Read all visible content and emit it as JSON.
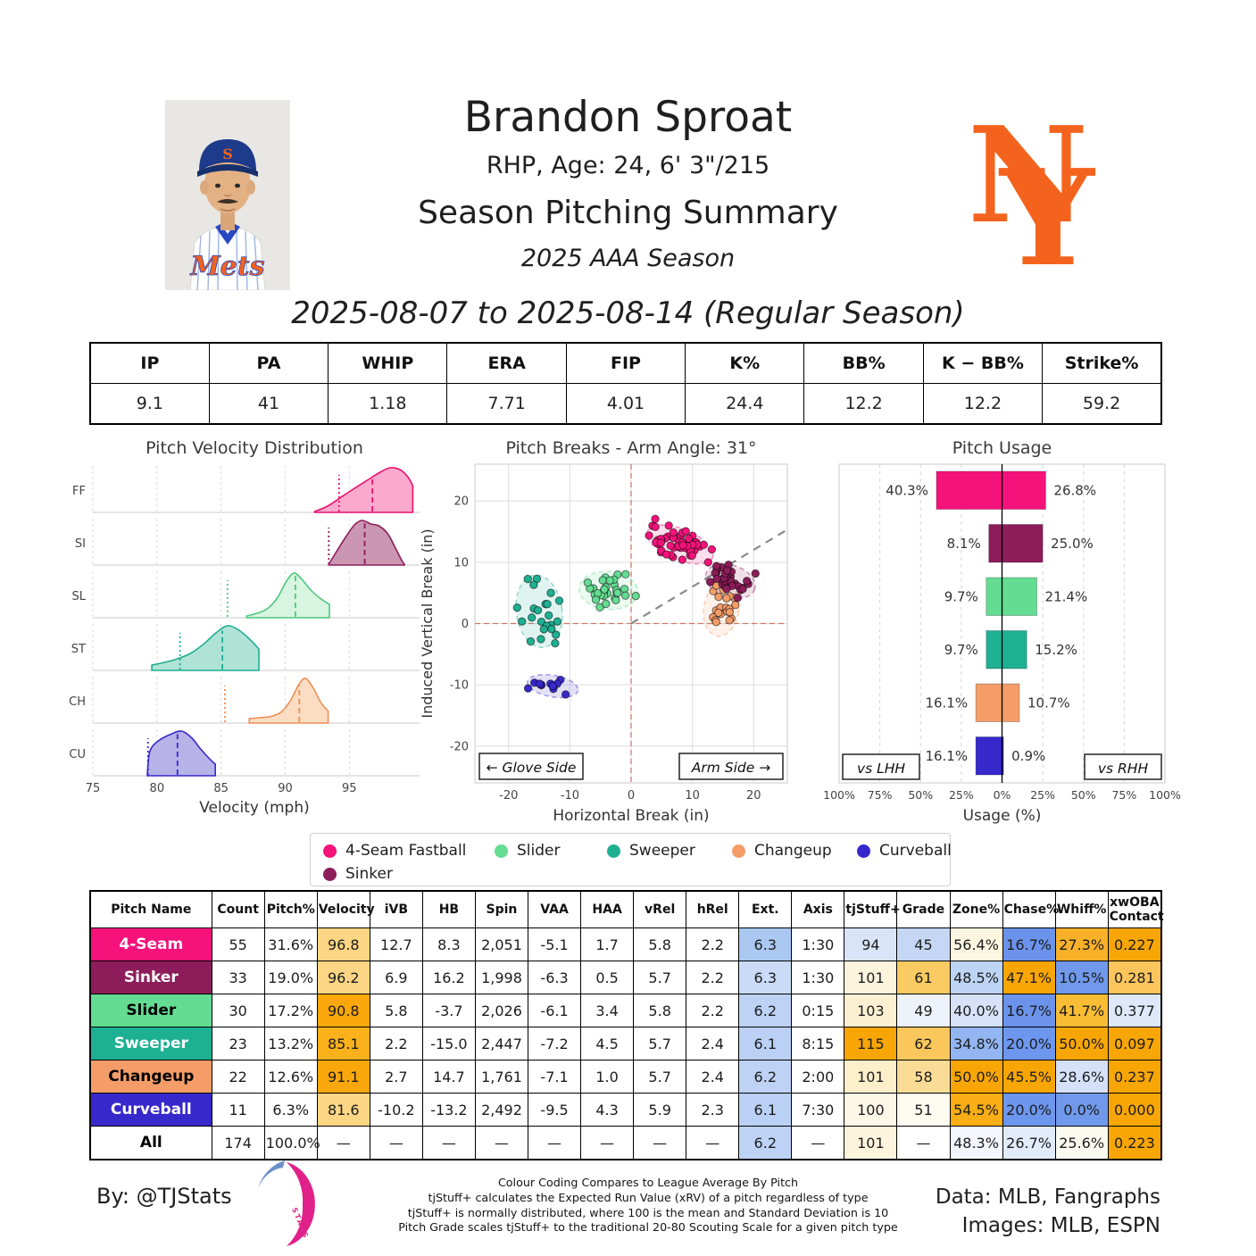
{
  "header": {
    "name": "Brandon Sproat",
    "bio": "RHP, Age: 24, 6' 3\"/215",
    "summary_title": "Season Pitching Summary",
    "season": "2025 AAA Season",
    "date_range": "2025-08-07 to 2025-08-14 (Regular Season)",
    "team": "New York Mets",
    "team_logo_color": "#F4631E",
    "jersey_text": "Mets"
  },
  "summary_table": {
    "columns": [
      "IP",
      "PA",
      "WHIP",
      "ERA",
      "FIP",
      "K%",
      "BB%",
      "K − BB%",
      "Strike%"
    ],
    "values": [
      "9.1",
      "41",
      "1.18",
      "7.71",
      "4.01",
      "24.4",
      "12.2",
      "12.2",
      "59.2"
    ]
  },
  "pitches": [
    {
      "abbr": "FF",
      "name": "4-Seam Fastball",
      "short": "4-Seam",
      "color": "#F5127B",
      "stroke": "#E8116F",
      "fill": "#FBA9CD",
      "label_text": "#FFFFFF"
    },
    {
      "abbr": "SI",
      "name": "Sinker",
      "short": "Sinker",
      "color": "#8D1D5A",
      "stroke": "#8D1D5A",
      "fill": "#CB96B1",
      "label_text": "#FFFFFF"
    },
    {
      "abbr": "SL",
      "name": "Slider",
      "short": "Slider",
      "color": "#64DC92",
      "stroke": "#4EC77F",
      "fill": "#D7F5E0",
      "label_text": "#000000"
    },
    {
      "abbr": "ST",
      "name": "Sweeper",
      "short": "Sweeper",
      "color": "#1EB092",
      "stroke": "#1EAE91",
      "fill": "#AFE3D6",
      "label_text": "#FFFFFF"
    },
    {
      "abbr": "CH",
      "name": "Changeup",
      "short": "Changeup",
      "color": "#F49D69",
      "stroke": "#EE8E57",
      "fill": "#FBDDC3",
      "label_text": "#000000"
    },
    {
      "abbr": "CU",
      "name": "Curveball",
      "short": "Curveball",
      "color": "#3728CC",
      "stroke": "#3728CC",
      "fill": "#B7B3E9",
      "label_text": "#FFFFFF"
    }
  ],
  "legend": {
    "rows": [
      [
        "4-Seam Fastball",
        "Slider",
        "Sweeper",
        "Changeup",
        "Curveball"
      ],
      [
        "Sinker"
      ]
    ],
    "item_offsets": [
      [
        14,
        206,
        332,
        472,
        612
      ],
      [
        14
      ]
    ]
  },
  "chart_data": [
    {
      "type": "area",
      "title": "Pitch Velocity Distribution",
      "xlabel": "Velocity (mph)",
      "xlim": [
        75,
        100.2
      ],
      "xticks": [
        75,
        80,
        85,
        90,
        95
      ],
      "legend_position": "none",
      "grid": "dashed-vertical",
      "rows": [
        {
          "abbr": "FF",
          "pitch": "4-Seam Fastball",
          "mean_mph": 96.8,
          "league_avg_mph": 94.2,
          "shape": [
            [
              92.3,
              0.02
            ],
            [
              93.3,
              0.14
            ],
            [
              94.3,
              0.33
            ],
            [
              95.3,
              0.52
            ],
            [
              96.4,
              0.72
            ],
            [
              97.4,
              0.9
            ],
            [
              98.2,
              1.0
            ],
            [
              99.0,
              0.95
            ],
            [
              99.6,
              0.78
            ],
            [
              99.95,
              0.6
            ]
          ]
        },
        {
          "abbr": "SI",
          "pitch": "Sinker",
          "mean_mph": 96.2,
          "league_avg_mph": 93.4,
          "shape": [
            [
              93.4,
              0.02
            ],
            [
              94.0,
              0.3
            ],
            [
              94.7,
              0.62
            ],
            [
              95.4,
              0.9
            ],
            [
              96.0,
              1.0
            ],
            [
              96.7,
              0.92
            ],
            [
              97.3,
              0.88
            ],
            [
              98.0,
              0.7
            ],
            [
              98.6,
              0.38
            ],
            [
              99.1,
              0.1
            ],
            [
              99.3,
              0.02
            ]
          ]
        },
        {
          "abbr": "SL",
          "pitch": "Slider",
          "mean_mph": 90.8,
          "league_avg_mph": 85.5,
          "shape": [
            [
              87.0,
              0.04
            ],
            [
              87.8,
              0.1
            ],
            [
              88.6,
              0.2
            ],
            [
              89.4,
              0.45
            ],
            [
              90.1,
              0.82
            ],
            [
              90.7,
              1.0
            ],
            [
              91.3,
              0.86
            ],
            [
              92.0,
              0.62
            ],
            [
              92.8,
              0.42
            ],
            [
              93.45,
              0.3
            ]
          ]
        },
        {
          "abbr": "ST",
          "pitch": "Sweeper",
          "mean_mph": 85.1,
          "league_avg_mph": 81.8,
          "shape": [
            [
              79.6,
              0.12
            ],
            [
              80.6,
              0.18
            ],
            [
              81.6,
              0.26
            ],
            [
              82.6,
              0.38
            ],
            [
              83.6,
              0.58
            ],
            [
              84.6,
              0.84
            ],
            [
              85.5,
              1.0
            ],
            [
              86.4,
              0.9
            ],
            [
              87.3,
              0.68
            ],
            [
              87.95,
              0.48
            ]
          ]
        },
        {
          "abbr": "CH",
          "pitch": "Changeup",
          "mean_mph": 91.1,
          "league_avg_mph": 85.3,
          "shape": [
            [
              87.2,
              0.1
            ],
            [
              88.0,
              0.12
            ],
            [
              88.9,
              0.15
            ],
            [
              89.7,
              0.25
            ],
            [
              90.4,
              0.5
            ],
            [
              91.1,
              0.88
            ],
            [
              91.6,
              1.0
            ],
            [
              92.2,
              0.78
            ],
            [
              92.8,
              0.45
            ],
            [
              93.35,
              0.27
            ]
          ]
        },
        {
          "abbr": "CU",
          "pitch": "Curveball",
          "mean_mph": 81.6,
          "league_avg_mph": 79.3,
          "shape": [
            [
              79.25,
              0.05
            ],
            [
              79.45,
              0.55
            ],
            [
              80.1,
              0.78
            ],
            [
              81.0,
              0.92
            ],
            [
              81.9,
              1.0
            ],
            [
              82.7,
              0.85
            ],
            [
              83.4,
              0.6
            ],
            [
              84.1,
              0.38
            ],
            [
              84.55,
              0.26
            ]
          ]
        }
      ]
    },
    {
      "type": "scatter",
      "title": "Pitch Breaks - Arm Angle: 31°",
      "xlabel": "Horizontal Break (in)",
      "ylabel": "Induced Vertical Break (in)",
      "xlim": [
        -25.5,
        25.5
      ],
      "ylim": [
        -26,
        26
      ],
      "xticks": [
        -20,
        -10,
        0,
        10,
        20
      ],
      "yticks": [
        -20,
        -10,
        0,
        10,
        20
      ],
      "arm_angle_deg": 31,
      "glove_side_label": "← Glove Side",
      "arm_side_label": "Arm Side →",
      "ellipse_sd_scale": 2.2,
      "clusters": [
        {
          "pitch": "4-Seam Fastball",
          "n": 55,
          "center": [
            8.0,
            12.9
          ],
          "sd": [
            2.6,
            1.15
          ],
          "rot_deg": -22,
          "seed": 11
        },
        {
          "pitch": "Sinker",
          "n": 33,
          "center": [
            16.2,
            6.9
          ],
          "sd": [
            1.9,
            1.2
          ],
          "rot_deg": -18,
          "seed": 22
        },
        {
          "pitch": "Slider",
          "n": 30,
          "center": [
            -3.7,
            5.4
          ],
          "sd": [
            2.2,
            1.4
          ],
          "rot_deg": -5,
          "seed": 33
        },
        {
          "pitch": "Sweeper",
          "n": 23,
          "center": [
            -15.0,
            2.0
          ],
          "sd": [
            1.7,
            2.7
          ],
          "rot_deg": 8,
          "seed": 44
        },
        {
          "pitch": "Changeup",
          "n": 22,
          "center": [
            14.7,
            2.3
          ],
          "sd": [
            1.3,
            2.0
          ],
          "rot_deg": -8,
          "seed": 55
        },
        {
          "pitch": "Curveball",
          "n": 11,
          "center": [
            -12.8,
            -10.2
          ],
          "sd": [
            1.9,
            0.8
          ],
          "rot_deg": -10,
          "seed": 66
        }
      ]
    },
    {
      "type": "bar",
      "title": "Pitch Usage",
      "xlabel": "Usage (%)",
      "xtick_labels": [
        "100%",
        "75%",
        "50%",
        "25%",
        "0%",
        "25%",
        "50%",
        "75%",
        "100%"
      ],
      "xtick_values": [
        -100,
        -75,
        -50,
        -25,
        0,
        25,
        50,
        75,
        100
      ],
      "left_box": "vs LHH",
      "right_box": "vs RHH",
      "bars": [
        {
          "pitch": "4-Seam Fastball",
          "vs_lhh_pct": 40.3,
          "vs_rhh_pct": 26.8
        },
        {
          "pitch": "Sinker",
          "vs_lhh_pct": 8.1,
          "vs_rhh_pct": 25.0
        },
        {
          "pitch": "Slider",
          "vs_lhh_pct": 9.7,
          "vs_rhh_pct": 21.4
        },
        {
          "pitch": "Sweeper",
          "vs_lhh_pct": 9.7,
          "vs_rhh_pct": 15.2
        },
        {
          "pitch": "Changeup",
          "vs_lhh_pct": 16.1,
          "vs_rhh_pct": 10.7
        },
        {
          "pitch": "Curveball",
          "vs_lhh_pct": 16.1,
          "vs_rhh_pct": 0.9
        }
      ]
    }
  ],
  "pitch_table": {
    "columns": [
      "Pitch Name",
      "Count",
      "Pitch%",
      "Velocity",
      "iVB",
      "HB",
      "Spin",
      "VAA",
      "HAA",
      "vRel",
      "hRel",
      "Ext.",
      "Axis",
      "tjStuff+",
      "Grade",
      "Zone%",
      "Chase%",
      "Whiff%",
      "xwOBA\nContact"
    ],
    "rows": [
      {
        "label": "4-Seam",
        "bg": "#F5127B",
        "fg": "#FFFFFF",
        "values": [
          "55",
          "31.6%",
          "96.8",
          "12.7",
          "8.3",
          "2,051",
          "-5.1",
          "1.7",
          "5.8",
          "2.2",
          "6.3",
          "1:30",
          "94",
          "45",
          "56.4%",
          "16.7%",
          "27.3%",
          "0.227"
        ],
        "colors": [
          null,
          null,
          "#FCD685",
          null,
          null,
          null,
          null,
          null,
          null,
          null,
          "#ABC8F2",
          null,
          "#D9E4F8",
          "#C5D7F5",
          "#FDF7E1",
          "#6B93EC",
          "#F9B12A",
          "#F8A606"
        ]
      },
      {
        "label": "Sinker",
        "bg": "#8D1D5A",
        "fg": "#FFFFFF",
        "values": [
          "33",
          "19.0%",
          "96.2",
          "6.9",
          "16.2",
          "1,998",
          "-6.3",
          "0.5",
          "5.7",
          "2.2",
          "6.3",
          "1:30",
          "101",
          "61",
          "48.5%",
          "47.1%",
          "10.5%",
          "0.281"
        ],
        "colors": [
          null,
          null,
          "#FCD685",
          null,
          null,
          null,
          null,
          null,
          null,
          null,
          "#C9DBF7",
          null,
          "#FDF4DE",
          "#FACB62",
          "#BED4F4",
          "#F8A606",
          "#7099EC",
          "#FBC55C"
        ]
      },
      {
        "label": "Slider",
        "bg": "#64DC92",
        "fg": "#000000",
        "values": [
          "30",
          "17.2%",
          "90.8",
          "5.8",
          "-3.7",
          "2,026",
          "-6.1",
          "3.4",
          "5.8",
          "2.2",
          "6.2",
          "0:15",
          "103",
          "49",
          "40.0%",
          "16.7%",
          "41.7%",
          "0.377"
        ],
        "colors": [
          null,
          null,
          "#F9A70A",
          null,
          null,
          null,
          null,
          null,
          null,
          null,
          "#BDD2F5",
          null,
          "#FCF0D2",
          "#EEF3FB",
          "#D7E2F8",
          "#6B93EC",
          "#F9BC35",
          "#DEE8F9"
        ]
      },
      {
        "label": "Sweeper",
        "bg": "#1EB092",
        "fg": "#FFFFFF",
        "values": [
          "23",
          "13.2%",
          "85.1",
          "2.2",
          "-15.0",
          "2,447",
          "-7.2",
          "4.5",
          "5.7",
          "2.4",
          "6.1",
          "8:15",
          "115",
          "62",
          "34.8%",
          "20.0%",
          "50.0%",
          "0.097"
        ],
        "colors": [
          null,
          null,
          "#FAB11C",
          null,
          null,
          null,
          null,
          null,
          null,
          null,
          "#BAD0F4",
          null,
          "#F8A606",
          "#FAC75C",
          "#93B5F1",
          "#6D97EE",
          "#F8A606",
          "#F8A606"
        ]
      },
      {
        "label": "Changeup",
        "bg": "#F49D69",
        "fg": "#000000",
        "values": [
          "22",
          "12.6%",
          "91.1",
          "2.7",
          "14.7",
          "1,761",
          "-7.1",
          "1.0",
          "5.7",
          "2.4",
          "6.2",
          "2:00",
          "101",
          "58",
          "50.0%",
          "45.5%",
          "28.6%",
          "0.237"
        ],
        "colors": [
          null,
          null,
          "#F9A70A",
          null,
          null,
          null,
          null,
          null,
          null,
          null,
          "#BDD2F5",
          null,
          "#FCEFC9",
          "#FBDC97",
          "#F8A606",
          "#F8A606",
          "#D5E1F8",
          "#F8A606"
        ]
      },
      {
        "label": "Curveball",
        "bg": "#3728CC",
        "fg": "#FFFFFF",
        "values": [
          "11",
          "6.3%",
          "81.6",
          "-10.2",
          "-13.2",
          "2,492",
          "-9.5",
          "4.3",
          "5.9",
          "2.3",
          "6.1",
          "7:30",
          "100",
          "51",
          "54.5%",
          "20.0%",
          "0.0%",
          "0.000"
        ],
        "colors": [
          null,
          null,
          "#FCD685",
          null,
          null,
          null,
          null,
          null,
          null,
          null,
          "#BAD0F4",
          null,
          "#FDF7E8",
          "#FEFBF1",
          "#F9AE15",
          "#6D97EE",
          "#7099EC",
          "#F8A606"
        ]
      },
      {
        "label": "All",
        "bg": "#FFFFFF",
        "fg": "#000000",
        "values": [
          "174",
          "100.0%",
          "—",
          "—",
          "—",
          "—",
          "—",
          "—",
          "—",
          "—",
          "6.2",
          "—",
          "101",
          "—",
          "48.3%",
          "26.7%",
          "25.6%",
          "0.223"
        ],
        "colors": [
          null,
          null,
          null,
          null,
          null,
          null,
          null,
          null,
          null,
          null,
          "#BDD2F5",
          null,
          "#FDF4DE",
          null,
          "#F3F6FC",
          "#E2EBFA",
          "#FBFAF0",
          "#F8A606"
        ]
      }
    ]
  },
  "footer": {
    "byline": "By: @TJStats",
    "notes": [
      "Colour Coding Compares to League Average By Pitch",
      "tjStuff+ calculates the Expected Run Value (xRV) of a pitch regardless of type",
      "tjStuff+ is normally distributed, where 100 is the mean and Standard Deviation is 10",
      "Pitch Grade scales tjStuff+ to the traditional 20-80 Scouting Scale for a given pitch type"
    ],
    "credits": [
      "Data: MLB, Fangraphs",
      "Images: MLB, ESPN"
    ],
    "logo_colors": {
      "blue": "#6C8FC7",
      "pink": "#E0218A"
    }
  }
}
